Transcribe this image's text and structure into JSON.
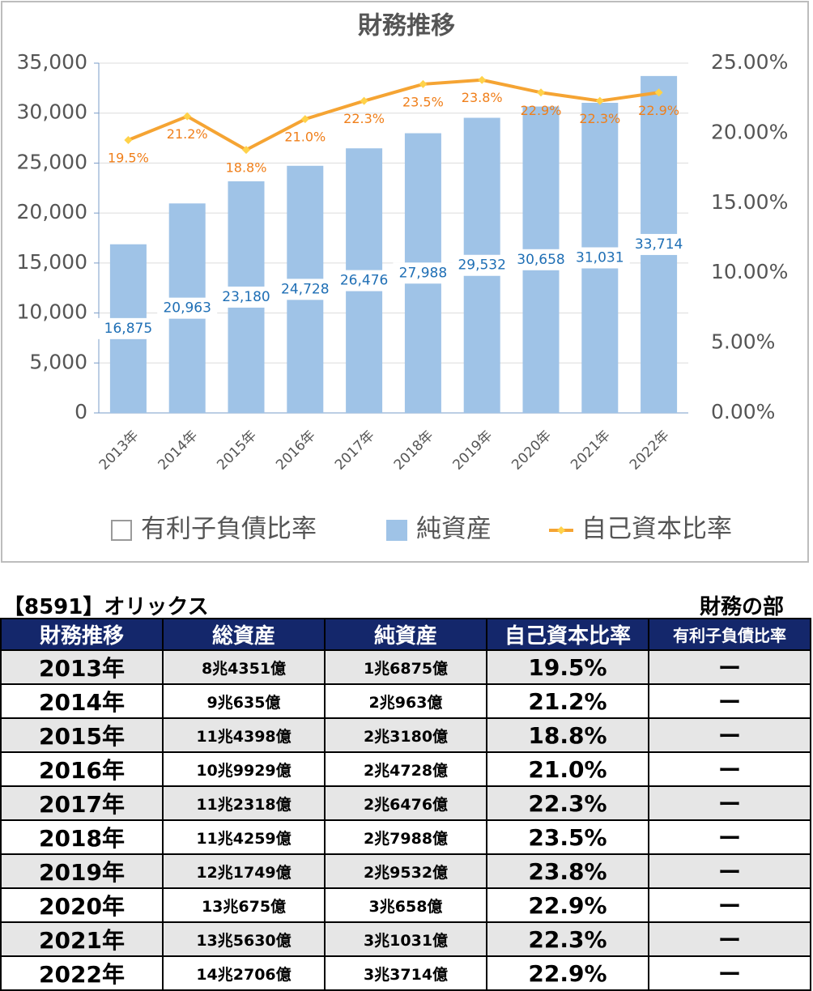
{
  "chart_data": {
    "type": "bar_line",
    "title": "財務推移",
    "categories": [
      "2013年",
      "2014年",
      "2015年",
      "2016年",
      "2017年",
      "2018年",
      "2019年",
      "2020年",
      "2021年",
      "2022年"
    ],
    "series": [
      {
        "name": "有利子負債比率",
        "type": "bar",
        "color": "#ffffff",
        "values": [
          null,
          null,
          null,
          null,
          null,
          null,
          null,
          null,
          null,
          null
        ]
      },
      {
        "name": "純資産",
        "type": "bar",
        "color": "#9fc3e7",
        "values": [
          16875,
          20963,
          23180,
          24728,
          26476,
          27988,
          29532,
          30658,
          31031,
          33714
        ],
        "value_labels": [
          "16,875",
          "20,963",
          "23,180",
          "24,728",
          "26,476",
          "27,988",
          "29,532",
          "30,658",
          "31,031",
          "33,714"
        ]
      },
      {
        "name": "自己資本比率",
        "type": "line",
        "axis": "y2",
        "color": "#f5a433",
        "values": [
          19.5,
          21.2,
          18.8,
          21.0,
          22.3,
          23.5,
          23.8,
          22.9,
          22.3,
          22.9
        ],
        "value_labels": [
          "19.5%",
          "21.2%",
          "18.8%",
          "21.0%",
          "22.3%",
          "23.5%",
          "23.8%",
          "22.9%",
          "22.3%",
          "22.9%"
        ]
      }
    ],
    "ylim": [
      0,
      35000
    ],
    "yticks": [
      0,
      {
        "value": 5000,
        "label": "5,000"
      },
      {
        "value": 10000,
        "label": "10,000"
      },
      {
        "value": 15000,
        "label": "15,000"
      },
      {
        "value": 20000,
        "label": "20,000"
      },
      {
        "value": 25000,
        "label": "25,000"
      },
      {
        "value": 30000,
        "label": "30,000"
      },
      {
        "value": 35000,
        "label": "35,000"
      }
    ],
    "y2lim": [
      0,
      25
    ],
    "y2ticks": [
      {
        "value": 0,
        "label": "0.00%"
      },
      {
        "value": 5,
        "label": "5.00%"
      },
      {
        "value": 10,
        "label": "10.00%"
      },
      {
        "value": 15,
        "label": "15.00%"
      },
      {
        "value": 20,
        "label": "20.00%"
      },
      {
        "value": 25,
        "label": "25.00%"
      }
    ],
    "grid": true
  },
  "table": {
    "title": "【8591】オリックス",
    "subtitle": "財務の部",
    "header": [
      "財務推移",
      "総資産",
      "純資産",
      "自己資本比率",
      "有利子負債比率"
    ],
    "rows": [
      [
        "2013年",
        "8兆4351億",
        "1兆6875億",
        "19.5%",
        "ー"
      ],
      [
        "2014年",
        "9兆635億",
        "2兆963億",
        "21.2%",
        "ー"
      ],
      [
        "2015年",
        "11兆4398億",
        "2兆3180億",
        "18.8%",
        "ー"
      ],
      [
        "2016年",
        "10兆9929億",
        "2兆4728億",
        "21.0%",
        "ー"
      ],
      [
        "2017年",
        "11兆2318億",
        "2兆6476億",
        "22.3%",
        "ー"
      ],
      [
        "2018年",
        "11兆4259億",
        "2兆7988億",
        "23.5%",
        "ー"
      ],
      [
        "2019年",
        "12兆1749億",
        "2兆9532億",
        "23.8%",
        "ー"
      ],
      [
        "2020年",
        "13兆675億",
        "3兆658億",
        "22.9%",
        "ー"
      ],
      [
        "2021年",
        "13兆5630億",
        "3兆1031億",
        "22.3%",
        "ー"
      ],
      [
        "2022年",
        "14兆2706億",
        "3兆3714億",
        "22.9%",
        "ー"
      ]
    ]
  }
}
